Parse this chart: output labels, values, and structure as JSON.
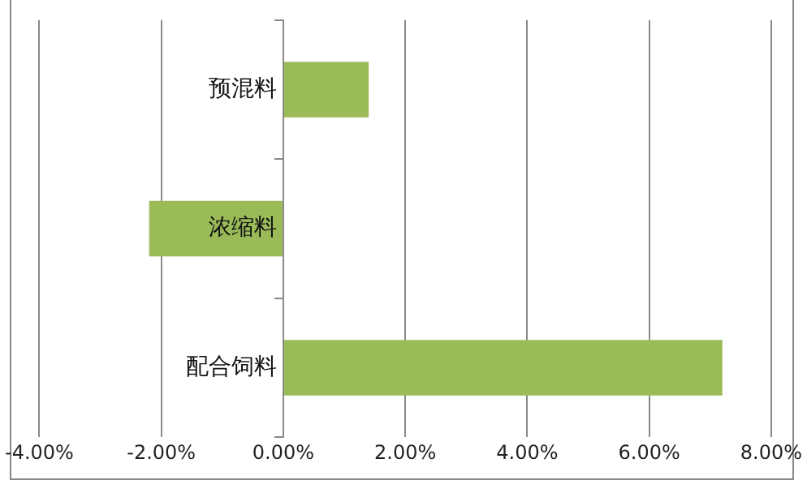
{
  "chart_data": {
    "type": "bar",
    "orientation": "horizontal",
    "categories": [
      "预混料",
      "浓缩料",
      "配合饲料"
    ],
    "values": [
      1.4,
      -2.2,
      7.2
    ],
    "color": "#9bbb59",
    "xlim": [
      -4,
      8
    ],
    "xticks": [
      {
        "value": -4,
        "label": "-4.00%"
      },
      {
        "value": -2,
        "label": "-2.00%"
      },
      {
        "value": 0,
        "label": "0.00%"
      },
      {
        "value": 2,
        "label": "2.00%"
      },
      {
        "value": 4,
        "label": "4.00%"
      },
      {
        "value": 6,
        "label": "6.00%"
      },
      {
        "value": 8,
        "label": "8.00%"
      }
    ],
    "grid": "x",
    "legend": false
  }
}
